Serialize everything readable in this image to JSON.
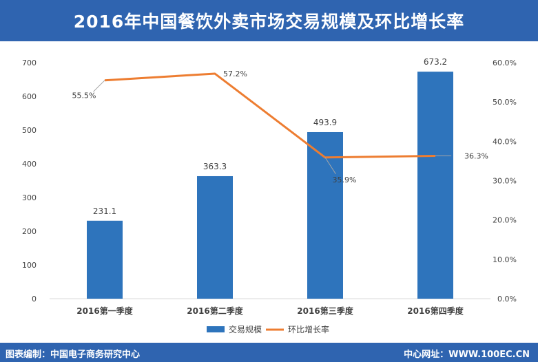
{
  "header": {
    "title": "2016年中国餐饮外卖市场交易规模及环比增长率"
  },
  "footer": {
    "left_label": "图表编制：中国电子商务研究中心",
    "right_label": "中心网址：WWW.100EC.CN"
  },
  "colors": {
    "header_bg": "#2f64b0",
    "bar": "#2e74bc",
    "line": "#ed7d31",
    "axis": "#d9d9d9"
  },
  "chart_data": {
    "type": "bar",
    "categories": [
      "2016第一季度",
      "2016第二季度",
      "2016第三季度",
      "2016第四季度"
    ],
    "series": [
      {
        "name": "交易规模",
        "type": "bar",
        "axis": "left",
        "values": [
          231.1,
          363.3,
          493.9,
          673.2
        ],
        "labels": [
          "231.1",
          "363.3",
          "493.9",
          "673.2"
        ]
      },
      {
        "name": "环比增长率",
        "type": "line",
        "axis": "right",
        "values": [
          55.5,
          57.2,
          35.9,
          36.3
        ],
        "labels": [
          "55.5%",
          "57.2%",
          "35.9%",
          "36.3%"
        ]
      }
    ],
    "y_left": {
      "ylim": [
        0,
        700
      ],
      "ticks": [
        "0",
        "100",
        "200",
        "300",
        "400",
        "500",
        "600",
        "700"
      ]
    },
    "y_right": {
      "ylim": [
        0,
        60
      ],
      "ticks": [
        "0.0%",
        "10.0%",
        "20.0%",
        "30.0%",
        "40.0%",
        "50.0%",
        "60.0%"
      ]
    },
    "legend": {
      "position": "bottom"
    },
    "grid": false
  }
}
